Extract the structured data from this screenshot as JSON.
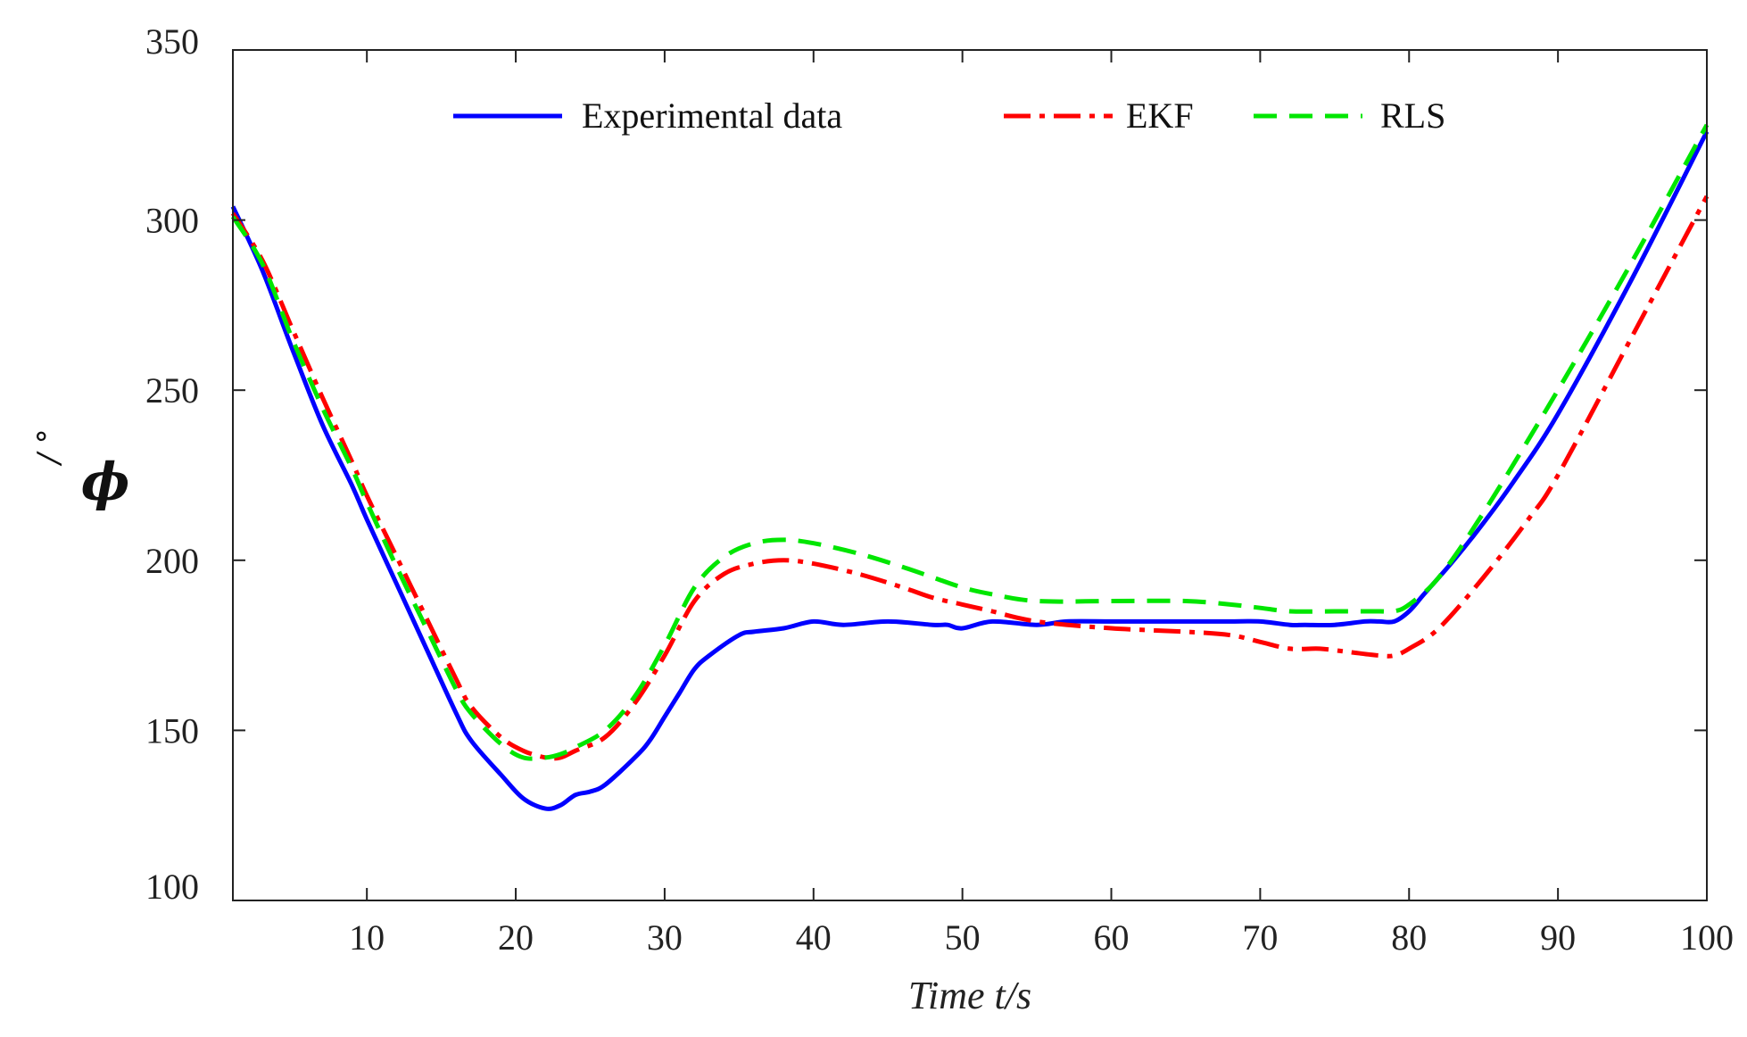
{
  "chart_data": {
    "type": "line",
    "title": "",
    "xlabel": "Time t/s",
    "ylabel_symbol": "ϕ",
    "ylabel_unit": "/ °",
    "xlim": [
      1,
      100
    ],
    "ylim": [
      100,
      350
    ],
    "xticks": [
      10,
      20,
      30,
      40,
      50,
      60,
      70,
      80,
      90,
      100
    ],
    "yticks": [
      100,
      150,
      200,
      250,
      300,
      350
    ],
    "grid": false,
    "legend_position": "top",
    "series": [
      {
        "name": "Experimental data",
        "color": "#0000ff",
        "style": "solid",
        "x": [
          1,
          3,
          5,
          7,
          9,
          10,
          12,
          14,
          16,
          17,
          19,
          20.5,
          22,
          23,
          24,
          25,
          26,
          28,
          29,
          30,
          31,
          32,
          33,
          35,
          36,
          38,
          40,
          42,
          45,
          48,
          49,
          50,
          52,
          55,
          57,
          60,
          63,
          66,
          68,
          70,
          72,
          73,
          75,
          77,
          78,
          79,
          80,
          81,
          83,
          85,
          87,
          90,
          95,
          100
        ],
        "values": [
          304,
          285,
          262,
          240,
          222,
          212,
          193,
          174,
          155,
          147,
          137,
          130,
          127,
          128,
          131,
          132,
          134,
          142,
          147,
          154,
          161,
          168,
          172,
          178,
          179,
          180,
          182,
          181,
          182,
          181,
          181,
          180,
          182,
          181,
          182,
          182,
          182,
          182,
          182,
          182,
          181,
          181,
          181,
          182,
          182,
          182,
          185,
          190,
          200,
          211,
          223,
          243,
          283,
          326
        ]
      },
      {
        "name": "EKF",
        "color": "#ff0000",
        "style": "dashdot",
        "x": [
          1,
          3,
          5,
          7,
          9,
          10,
          12,
          14,
          16,
          17,
          19,
          20.5,
          22,
          23,
          24,
          26,
          28,
          30,
          32,
          34,
          36,
          38,
          40,
          43,
          46,
          48,
          50,
          52,
          55,
          60,
          65,
          68,
          70,
          72,
          74,
          76,
          78,
          79,
          80,
          82,
          85,
          88,
          90,
          95,
          100
        ],
        "values": [
          302,
          288,
          268,
          248,
          229,
          219,
          201,
          183,
          165,
          157,
          148,
          144,
          142,
          142,
          144,
          148,
          158,
          172,
          188,
          196,
          199,
          200,
          199,
          196,
          192,
          189,
          187,
          185,
          182,
          180,
          179,
          178,
          176,
          174,
          174,
          173,
          172,
          172,
          174,
          180,
          195,
          212,
          225,
          266,
          307
        ]
      },
      {
        "name": "RLS",
        "color": "#00e600",
        "style": "dashed",
        "x": [
          1,
          3,
          5,
          7,
          9,
          10,
          12,
          14,
          16,
          17,
          19,
          20.5,
          22,
          23,
          24,
          26,
          28,
          30,
          32,
          34,
          36,
          38,
          40,
          43,
          46,
          48,
          50,
          52,
          55,
          60,
          65,
          68,
          70,
          72,
          75,
          78,
          79,
          80,
          82,
          85,
          90,
          95,
          100
        ],
        "values": [
          301,
          287,
          265,
          245,
          227,
          217,
          198,
          180,
          162,
          155,
          146,
          142,
          142,
          143,
          145,
          150,
          160,
          175,
          192,
          201,
          205,
          206,
          205,
          202,
          198,
          195,
          192,
          190,
          188,
          188,
          188,
          187,
          186,
          185,
          185,
          185,
          185,
          187,
          195,
          214,
          250,
          288,
          328
        ]
      }
    ]
  }
}
